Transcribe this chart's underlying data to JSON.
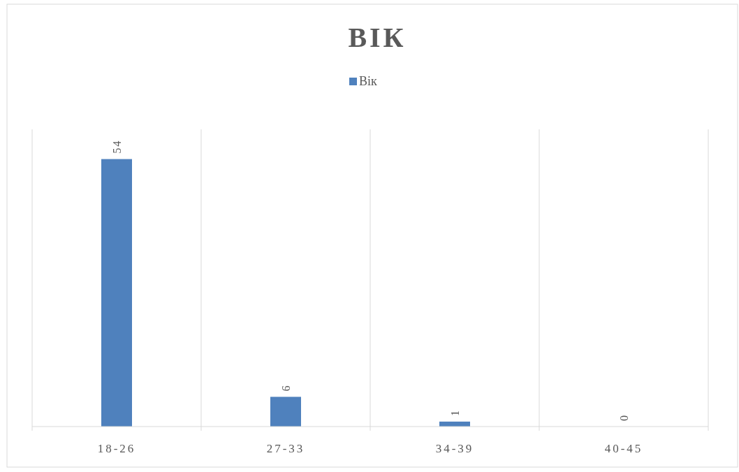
{
  "chart_data": {
    "type": "bar",
    "title": "ВІК",
    "categories": [
      "18-26",
      "27-33",
      "34-39",
      "40-45"
    ],
    "series": [
      {
        "name": "Вік",
        "color": "#4f81bd",
        "values": [
          54,
          6,
          1,
          0
        ]
      }
    ],
    "ylim": [
      0,
      60
    ],
    "tick_labels": "x",
    "data_labels": true,
    "grid": "x",
    "legend": "top"
  }
}
